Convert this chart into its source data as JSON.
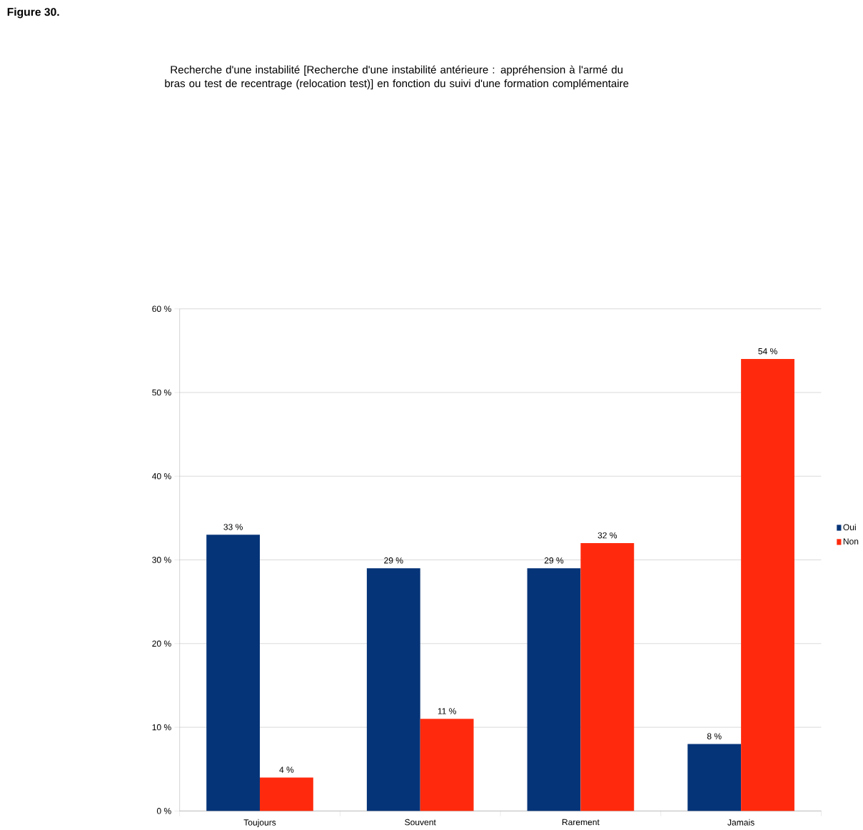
{
  "chart_data": {
    "type": "bar",
    "title": "Figure 30.",
    "subtitle": "Recherche d'une instabilité  [Recherche d'une instabilité antérieure : appréhension à l'armé du bras ou test de recentrage (relocation test)] en fonction du suivi d'une formation complémentaire",
    "categories": [
      "Toujours",
      "Souvent",
      "Rarement",
      "Jamais"
    ],
    "series": [
      {
        "name": "Oui",
        "color": "#063478",
        "values": [
          33,
          29,
          29,
          8
        ],
        "value_labels": [
          "33 %",
          "29 %",
          "29 %",
          "8 %"
        ]
      },
      {
        "name": "Non",
        "color": "#ff2a0d",
        "values": [
          4,
          11,
          32,
          54
        ],
        "value_labels": [
          "4 %",
          "11 %",
          "32 %",
          "54 %"
        ]
      }
    ],
    "ylim": [
      0,
      60
    ],
    "yticks": [
      {
        "value": 0,
        "label": "0 %"
      },
      {
        "value": 10,
        "label": "10 %"
      },
      {
        "value": 20,
        "label": "20 %"
      },
      {
        "value": 30,
        "label": "30 %"
      },
      {
        "value": 40,
        "label": "40 %"
      },
      {
        "value": 50,
        "label": "50 %"
      },
      {
        "value": 60,
        "label": "60 %"
      }
    ],
    "grid": "y",
    "legend": "right"
  }
}
